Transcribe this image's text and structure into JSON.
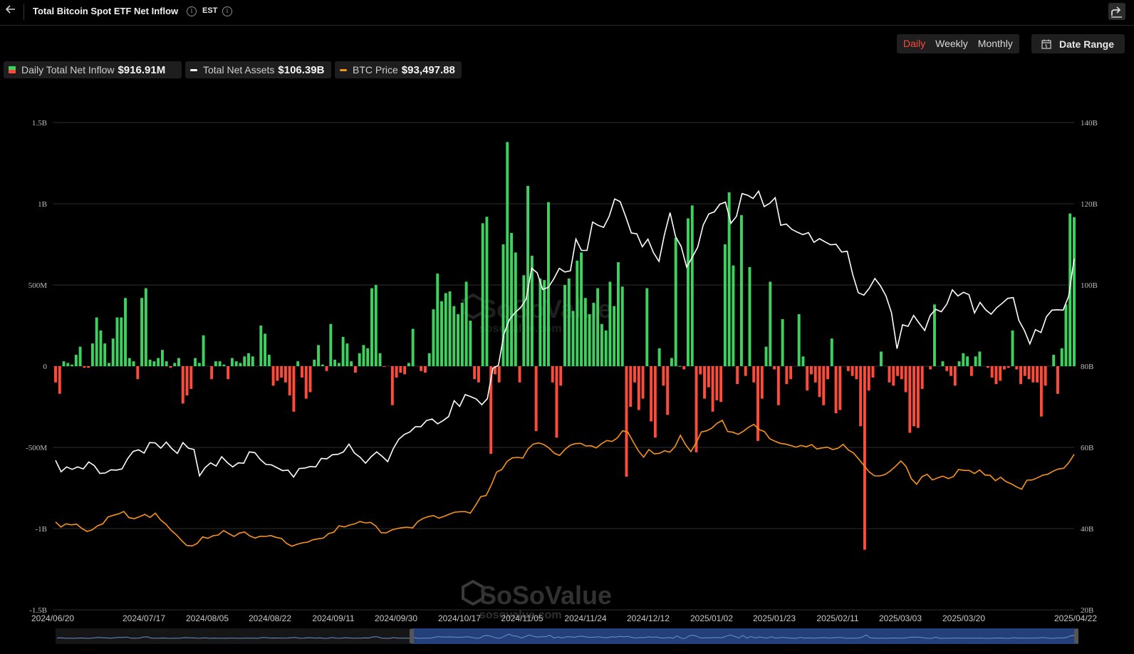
{
  "header": {
    "back_icon": "arrow-left-icon",
    "title": "Total Bitcoin Spot ETF Net Inflow",
    "timezone": "EST",
    "share_icon": "share-icon"
  },
  "controls": {
    "periods": [
      "Daily",
      "Weekly",
      "Monthly"
    ],
    "active_period": "Daily",
    "date_range_label": "Date Range",
    "date_range_icon": "calendar-icon"
  },
  "legend": [
    {
      "label": "Daily Total Net Inflow",
      "value": "$916.91M",
      "color": "#3fd160"
    },
    {
      "label": "Total Net Assets",
      "value": "$106.39B",
      "color": "#ffffff"
    },
    {
      "label": "BTC Price",
      "value": "$93,497.88",
      "color": "#f7931a"
    }
  ],
  "watermark": {
    "brand": "SoSoValue",
    "url": "sosovalue.com"
  },
  "colors": {
    "positive": "#3fd160",
    "negative": "#ff4b3a",
    "assets_line": "#ffffff",
    "price_line": "#f7931a",
    "navigator": "#24407a"
  },
  "chart_data": {
    "type": "bar",
    "title": "Total Bitcoin Spot ETF Net Inflow",
    "x_ticks": [
      "2024/06/20",
      "2024/07/17",
      "2024/08/05",
      "2024/08/22",
      "2024/09/11",
      "2024/09/30",
      "2024/10/17",
      "2024/11/05",
      "2024/11/24",
      "2024/12/12",
      "2025/01/02",
      "2025/01/23",
      "2025/02/11",
      "2025/03/03",
      "2025/03/20",
      "2025/04/22"
    ],
    "y_left": {
      "ticks": [
        "1.5B",
        "1B",
        "500M",
        "0",
        "-500M",
        "-1B",
        "-1.5B"
      ],
      "ylim": [
        -1500000000,
        1500000000
      ]
    },
    "y_right": {
      "ticks": [
        "140B",
        "120B",
        "100B",
        "80B",
        "60B",
        "40B",
        "20B"
      ],
      "ylim": [
        20000000000,
        140000000000
      ]
    },
    "grid": true,
    "series": [
      {
        "name": "Daily Total Net Inflow",
        "type": "bar",
        "unit": "USD",
        "values": [
          -100000000,
          -170000000,
          30000000,
          20000000,
          10000000,
          70000000,
          120000000,
          -10000000,
          -10000000,
          140000000,
          300000000,
          220000000,
          140000000,
          20000000,
          170000000,
          300000000,
          300000000,
          420000000,
          50000000,
          30000000,
          -80000000,
          420000000,
          480000000,
          40000000,
          30000000,
          50000000,
          100000000,
          30000000,
          -10000000,
          20000000,
          50000000,
          -230000000,
          -180000000,
          -140000000,
          50000000,
          20000000,
          190000000,
          0,
          -80000000,
          30000000,
          30000000,
          10000000,
          -80000000,
          50000000,
          30000000,
          20000000,
          60000000,
          80000000,
          60000000,
          0,
          250000000,
          200000000,
          70000000,
          -120000000,
          -90000000,
          -70000000,
          -100000000,
          -180000000,
          -280000000,
          30000000,
          -70000000,
          -200000000,
          -160000000,
          40000000,
          130000000,
          10000000,
          -30000000,
          260000000,
          40000000,
          20000000,
          180000000,
          140000000,
          30000000,
          -40000000,
          80000000,
          130000000,
          110000000,
          480000000,
          500000000,
          80000000,
          -1000000,
          0,
          -240000000,
          -70000000,
          -40000000,
          -50000000,
          20000000,
          230000000,
          0,
          -30000000,
          -40000000,
          80000000,
          350000000,
          570000000,
          400000000,
          450000000,
          460000000,
          370000000,
          320000000,
          390000000,
          520000000,
          280000000,
          -80000000,
          -100000000,
          880000000,
          920000000,
          -540000000,
          -50000000,
          -100000000,
          750000000,
          1380000000,
          820000000,
          700000000,
          -100000000,
          560000000,
          1110000000,
          680000000,
          -400000000,
          540000000,
          530000000,
          1010000000,
          -100000000,
          -440000000,
          -120000000,
          500000000,
          540000000,
          340000000,
          650000000,
          700000000,
          420000000,
          320000000,
          390000000,
          480000000,
          260000000,
          220000000,
          520000000,
          370000000,
          640000000,
          490000000,
          -680000000,
          -250000000,
          -100000000,
          -270000000,
          -200000000,
          480000000,
          -340000000,
          -440000000,
          110000000,
          -120000000,
          -300000000,
          50000000,
          790000000,
          1000000,
          -20000000,
          910000000,
          990000000,
          -530000000,
          -50000000,
          -200000000,
          -130000000,
          -280000000,
          -210000000,
          -220000000,
          750000000,
          1070000000,
          620000000,
          -110000000,
          930000000,
          -60000000,
          610000000,
          -100000000,
          -460000000,
          -200000000,
          120000000,
          520000000,
          -20000000,
          -240000000,
          290000000,
          -110000000,
          -80000000,
          0,
          320000000,
          60000000,
          -150000000,
          -50000000,
          -100000000,
          -190000000,
          -240000000,
          -80000000,
          170000000,
          -290000000,
          -270000000,
          0,
          -30000000,
          -60000000,
          -80000000,
          -370000000,
          -1130000000,
          -150000000,
          -70000000,
          0,
          90000000,
          0,
          -100000000,
          -120000000,
          -60000000,
          -80000000,
          -160000000,
          -410000000,
          -370000000,
          -380000000,
          -140000000,
          0,
          -20000000,
          380000000,
          0,
          30000000,
          -30000000,
          -60000000,
          -120000000,
          30000000,
          80000000,
          60000000,
          -60000000,
          60000000,
          90000000,
          0,
          -10000000,
          -70000000,
          -110000000,
          -90000000,
          -20000000,
          -10000000,
          220000000,
          -20000000,
          -110000000,
          -60000000,
          -80000000,
          -100000000,
          -100000000,
          -310000000,
          -120000000,
          0,
          70000000,
          -170000000,
          110000000,
          380000000,
          940000000,
          917000000
        ]
      },
      {
        "name": "Total Net Assets",
        "type": "line",
        "unit": "USD",
        "values": [
          56800000000,
          54000000000,
          55200000000,
          54600000000,
          55200000000,
          54700000000,
          56400000000,
          55500000000,
          53600000000,
          53700000000,
          54500000000,
          54400000000,
          54700000000,
          57200000000,
          59000000000,
          59400000000,
          58600000000,
          61200000000,
          61100000000,
          59800000000,
          61300000000,
          59700000000,
          58500000000,
          61200000000,
          59800000000,
          59500000000,
          53000000000,
          55000000000,
          56200000000,
          55400000000,
          57700000000,
          56300000000,
          55200000000,
          56200000000,
          56100000000,
          58900000000,
          58700000000,
          57000000000,
          55800000000,
          55700000000,
          55000000000,
          54300000000,
          54400000000,
          52700000000,
          54800000000,
          54900000000,
          55300000000,
          55200000000,
          57300000000,
          57200000000,
          58200000000,
          58300000000,
          58900000000,
          60800000000,
          58600000000,
          57600000000,
          56100000000,
          57700000000,
          58900000000,
          57800000000,
          56500000000,
          59700000000,
          62000000000,
          63200000000,
          63800000000,
          65100000000,
          65100000000,
          66600000000,
          67000000000,
          65800000000,
          66600000000,
          67600000000,
          71500000000,
          70100000000,
          73000000000,
          72500000000,
          71900000000,
          70500000000,
          72000000000,
          79500000000,
          80200000000,
          87900000000,
          91500000000,
          93200000000,
          94400000000,
          96500000000,
          104100000000,
          103000000000,
          98900000000,
          99400000000,
          101500000000,
          104100000000,
          103200000000,
          103500000000,
          111300000000,
          108500000000,
          108500000000,
          115500000000,
          114700000000,
          114200000000,
          116900000000,
          121200000000,
          120500000000,
          116800000000,
          112800000000,
          112600000000,
          109400000000,
          111300000000,
          108000000000,
          105800000000,
          112500000000,
          117800000000,
          111900000000,
          109500000000,
          104400000000,
          106800000000,
          109300000000,
          114800000000,
          117500000000,
          118000000000,
          119900000000,
          120400000000,
          115200000000,
          116900000000,
          122500000000,
          122100000000,
          121300000000,
          123100000000,
          119300000000,
          120100000000,
          121500000000,
          114700000000,
          115000000000,
          113700000000,
          113000000000,
          112400000000,
          112900000000,
          110500000000,
          111400000000,
          110600000000,
          109900000000,
          110000000000,
          108100000000,
          108300000000,
          102600000000,
          98100000000,
          97500000000,
          99200000000,
          101600000000,
          99800000000,
          97300000000,
          93200000000,
          84300000000,
          90200000000,
          89800000000,
          92500000000,
          90600000000,
          88800000000,
          92500000000,
          94000000000,
          93400000000,
          95300000000,
          98800000000,
          97300000000,
          98200000000,
          97600000000,
          93100000000,
          95700000000,
          93900000000,
          92800000000,
          94400000000,
          95500000000,
          96700000000,
          96900000000,
          91300000000,
          88800000000,
          85500000000,
          89000000000,
          88300000000,
          92200000000,
          93800000000,
          93900000000,
          93800000000,
          97200000000,
          106400000000
        ]
      },
      {
        "name": "BTC Price",
        "type": "line",
        "unit": "USD",
        "values": [
          65000,
          62900,
          64200,
          63800,
          64100,
          62300,
          61000,
          61700,
          63400,
          64200,
          67100,
          67800,
          68400,
          69400,
          66800,
          66400,
          67200,
          68200,
          66900,
          68700,
          65900,
          64100,
          61500,
          59600,
          57200,
          55100,
          54900,
          56000,
          58700,
          58100,
          59200,
          59500,
          61400,
          60100,
          58900,
          60300,
          60800,
          59100,
          58200,
          59000,
          58900,
          59300,
          58500,
          58100,
          56000,
          54800,
          55600,
          56200,
          56500,
          57500,
          57900,
          58200,
          60100,
          60700,
          63400,
          62900,
          63700,
          64200,
          65200,
          64600,
          64800,
          63300,
          60500,
          60400,
          61600,
          62200,
          62600,
          62800,
          62500,
          65200,
          66500,
          67300,
          67700,
          66600,
          67400,
          68300,
          69100,
          69300,
          69400,
          68700,
          72000,
          75700,
          76100,
          80600,
          86000,
          87100,
          90500,
          92000,
          92200,
          91900,
          95800,
          97800,
          98300,
          97600,
          96100,
          93900,
          93000,
          95500,
          97300,
          98000,
          98100,
          97000,
          97100,
          96200,
          98000,
          99300,
          98900,
          100400,
          103400,
          102800,
          98800,
          95000,
          92300,
          95500,
          93700,
          93900,
          95000,
          94400,
          96800,
          101500,
          97500,
          94600,
          98300,
          102900,
          103400,
          104500,
          106600,
          107800,
          103100,
          102800,
          101900,
          103200,
          104900,
          106100,
          103900,
          103100,
          100100,
          99000,
          98100,
          97800,
          97200,
          96500,
          97200,
          96700,
          97600,
          95700,
          96200,
          96500,
          95500,
          96000,
          97700,
          95300,
          94000,
          91400,
          88700,
          86000,
          84400,
          84400,
          85000,
          86500,
          88500,
          90700,
          88300,
          83200,
          80900,
          84000,
          85100,
          82700,
          83600,
          84300,
          83300,
          84100,
          87100,
          86700,
          86700,
          85400,
          86900,
          84800,
          84600,
          82400,
          83800,
          82000,
          81100,
          79800,
          78800,
          82600,
          82700,
          83600,
          84700,
          85100,
          86400,
          87300,
          87600,
          90000,
          93497.88
        ]
      }
    ],
    "annotations": []
  }
}
